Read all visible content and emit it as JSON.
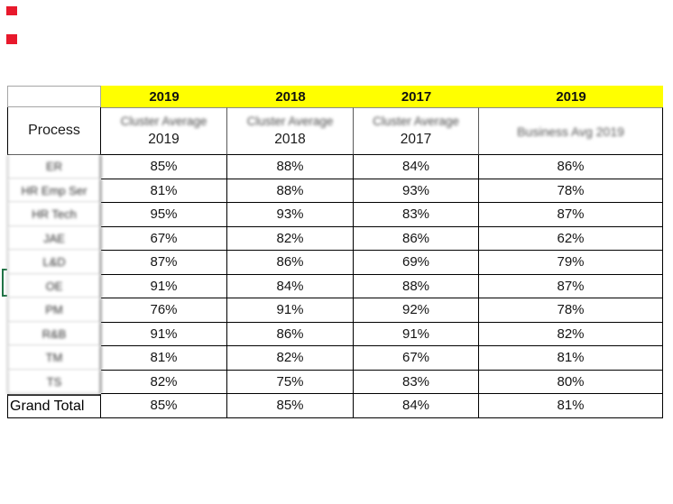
{
  "table": {
    "process_header": "Process",
    "year_headers": [
      "2019",
      "2018",
      "2017",
      "2019"
    ],
    "col_headers": [
      {
        "line1": "Cluster Average",
        "line2": "2019"
      },
      {
        "line1": "Cluster Average",
        "line2": "2018"
      },
      {
        "line1": "Cluster Average",
        "line2": "2017"
      },
      {
        "line1": "Business Avg 2019",
        "line2": ""
      }
    ],
    "rows": [
      {
        "label": "ER",
        "blurred": true,
        "values": [
          "85%",
          "88%",
          "84%",
          "86%"
        ]
      },
      {
        "label": "HR Emp Ser",
        "blurred": true,
        "values": [
          "81%",
          "88%",
          "93%",
          "78%"
        ]
      },
      {
        "label": "HR Tech",
        "blurred": true,
        "values": [
          "95%",
          "93%",
          "83%",
          "87%"
        ]
      },
      {
        "label": "JAE",
        "blurred": true,
        "values": [
          "67%",
          "82%",
          "86%",
          "62%"
        ]
      },
      {
        "label": "L&D",
        "blurred": true,
        "values": [
          "87%",
          "86%",
          "69%",
          "79%"
        ]
      },
      {
        "label": "OE",
        "blurred": true,
        "values": [
          "91%",
          "84%",
          "88%",
          "87%"
        ]
      },
      {
        "label": "PM",
        "blurred": true,
        "values": [
          "76%",
          "91%",
          "92%",
          "78%"
        ]
      },
      {
        "label": "R&B",
        "blurred": true,
        "values": [
          "91%",
          "86%",
          "91%",
          "82%"
        ]
      },
      {
        "label": "TM",
        "blurred": true,
        "values": [
          "81%",
          "82%",
          "67%",
          "81%"
        ]
      },
      {
        "label": "TS",
        "blurred": true,
        "values": [
          "82%",
          "75%",
          "83%",
          "80%"
        ]
      },
      {
        "label": "Grand Total",
        "blurred": false,
        "values": [
          "85%",
          "85%",
          "84%",
          "81%"
        ]
      }
    ]
  },
  "chart_data": {
    "type": "table",
    "title": "",
    "categories": [
      "ER",
      "HR Emp Ser",
      "HR Tech",
      "JAE",
      "L&D",
      "OE",
      "PM",
      "R&B",
      "TM",
      "TS",
      "Grand Total"
    ],
    "series": [
      {
        "name": "Cluster Average 2019",
        "values": [
          85,
          81,
          95,
          67,
          87,
          91,
          76,
          91,
          81,
          82,
          85
        ]
      },
      {
        "name": "Cluster Average 2018",
        "values": [
          88,
          88,
          93,
          82,
          86,
          84,
          91,
          86,
          82,
          75,
          85
        ]
      },
      {
        "name": "Cluster Average 2017",
        "values": [
          84,
          93,
          83,
          86,
          69,
          88,
          92,
          91,
          67,
          83,
          84
        ]
      },
      {
        "name": "Business Avg 2019",
        "values": [
          86,
          78,
          87,
          62,
          79,
          87,
          78,
          82,
          81,
          80,
          81
        ]
      }
    ],
    "unit": "%",
    "legend_position": "none",
    "grid": true
  },
  "colors": {
    "header_bg": "#ffff00",
    "grid_line": "#000000",
    "light_grid_line": "#b3b3b3",
    "marker_red": "#e8192c",
    "bracket_green": "#217346"
  }
}
